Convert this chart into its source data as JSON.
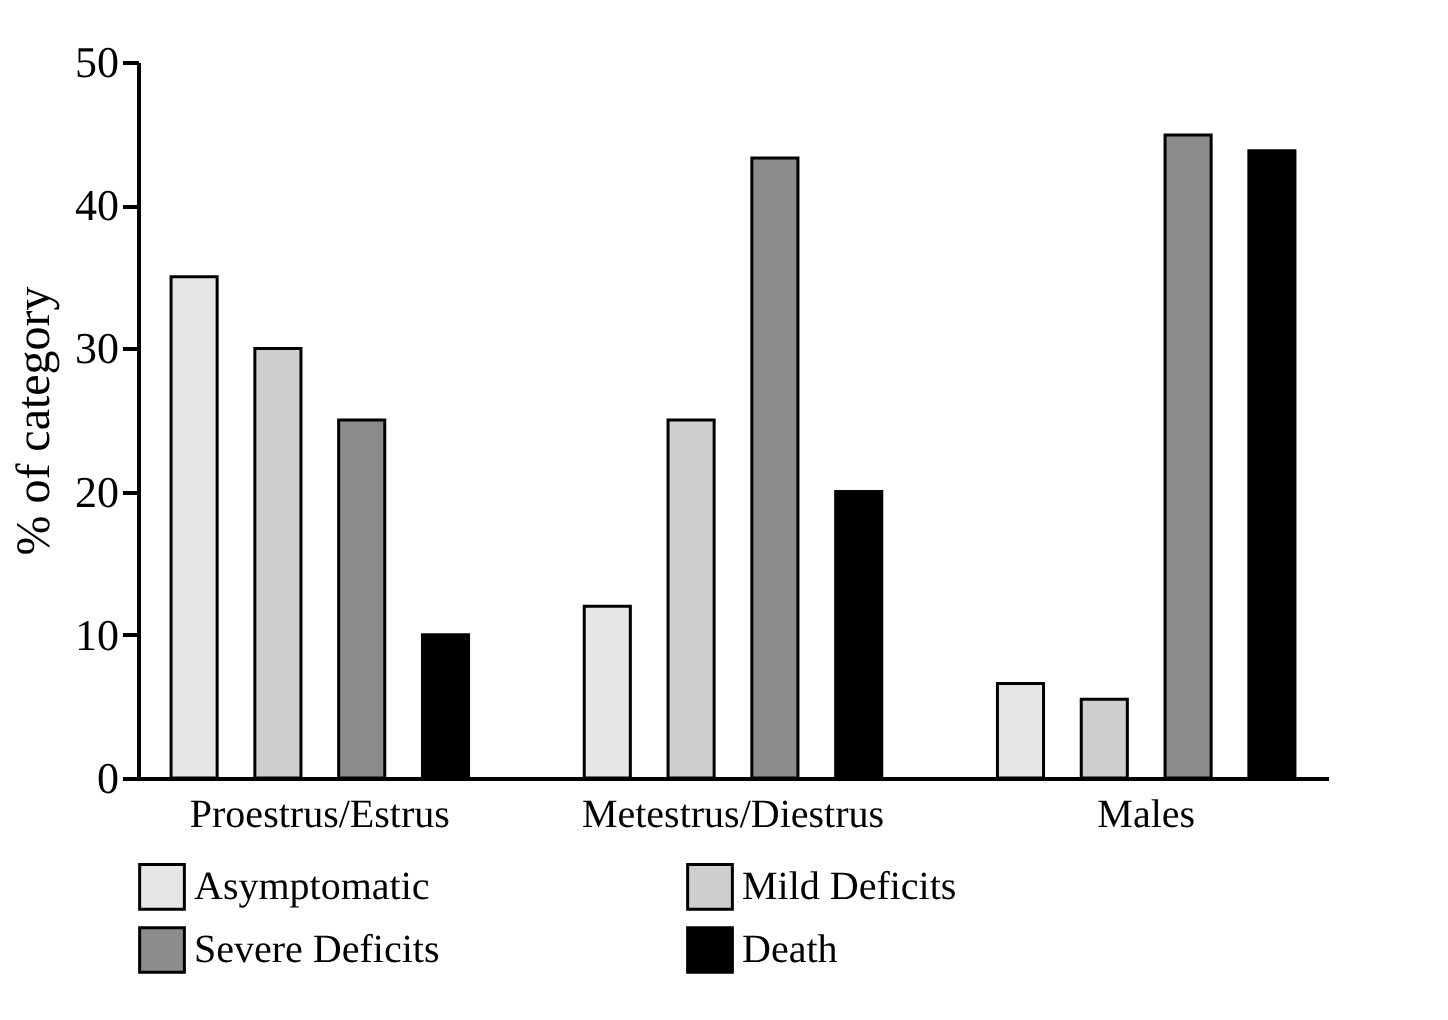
{
  "chart_data": {
    "type": "bar",
    "ylabel": "% of category",
    "categories": [
      "Proestrus/Estrus",
      "Metestrus/Diestrus",
      "Males"
    ],
    "series": [
      {
        "name": "Asymptomatic",
        "color": "#e6e6e6",
        "values": [
          35,
          12,
          6.6
        ]
      },
      {
        "name": "Mild Deficits",
        "color": "#cfcfcf",
        "values": [
          30,
          25,
          5.5
        ]
      },
      {
        "name": "Severe Deficits",
        "color": "#8c8c8c",
        "values": [
          25,
          43.3,
          44.9
        ]
      },
      {
        "name": "Death",
        "color": "#000000",
        "values": [
          10,
          20,
          43.8
        ]
      }
    ],
    "ylim": [
      0,
      50
    ],
    "yticks": [
      0,
      10,
      20,
      30,
      40,
      50
    ],
    "grid": false,
    "legend": "bottom"
  }
}
